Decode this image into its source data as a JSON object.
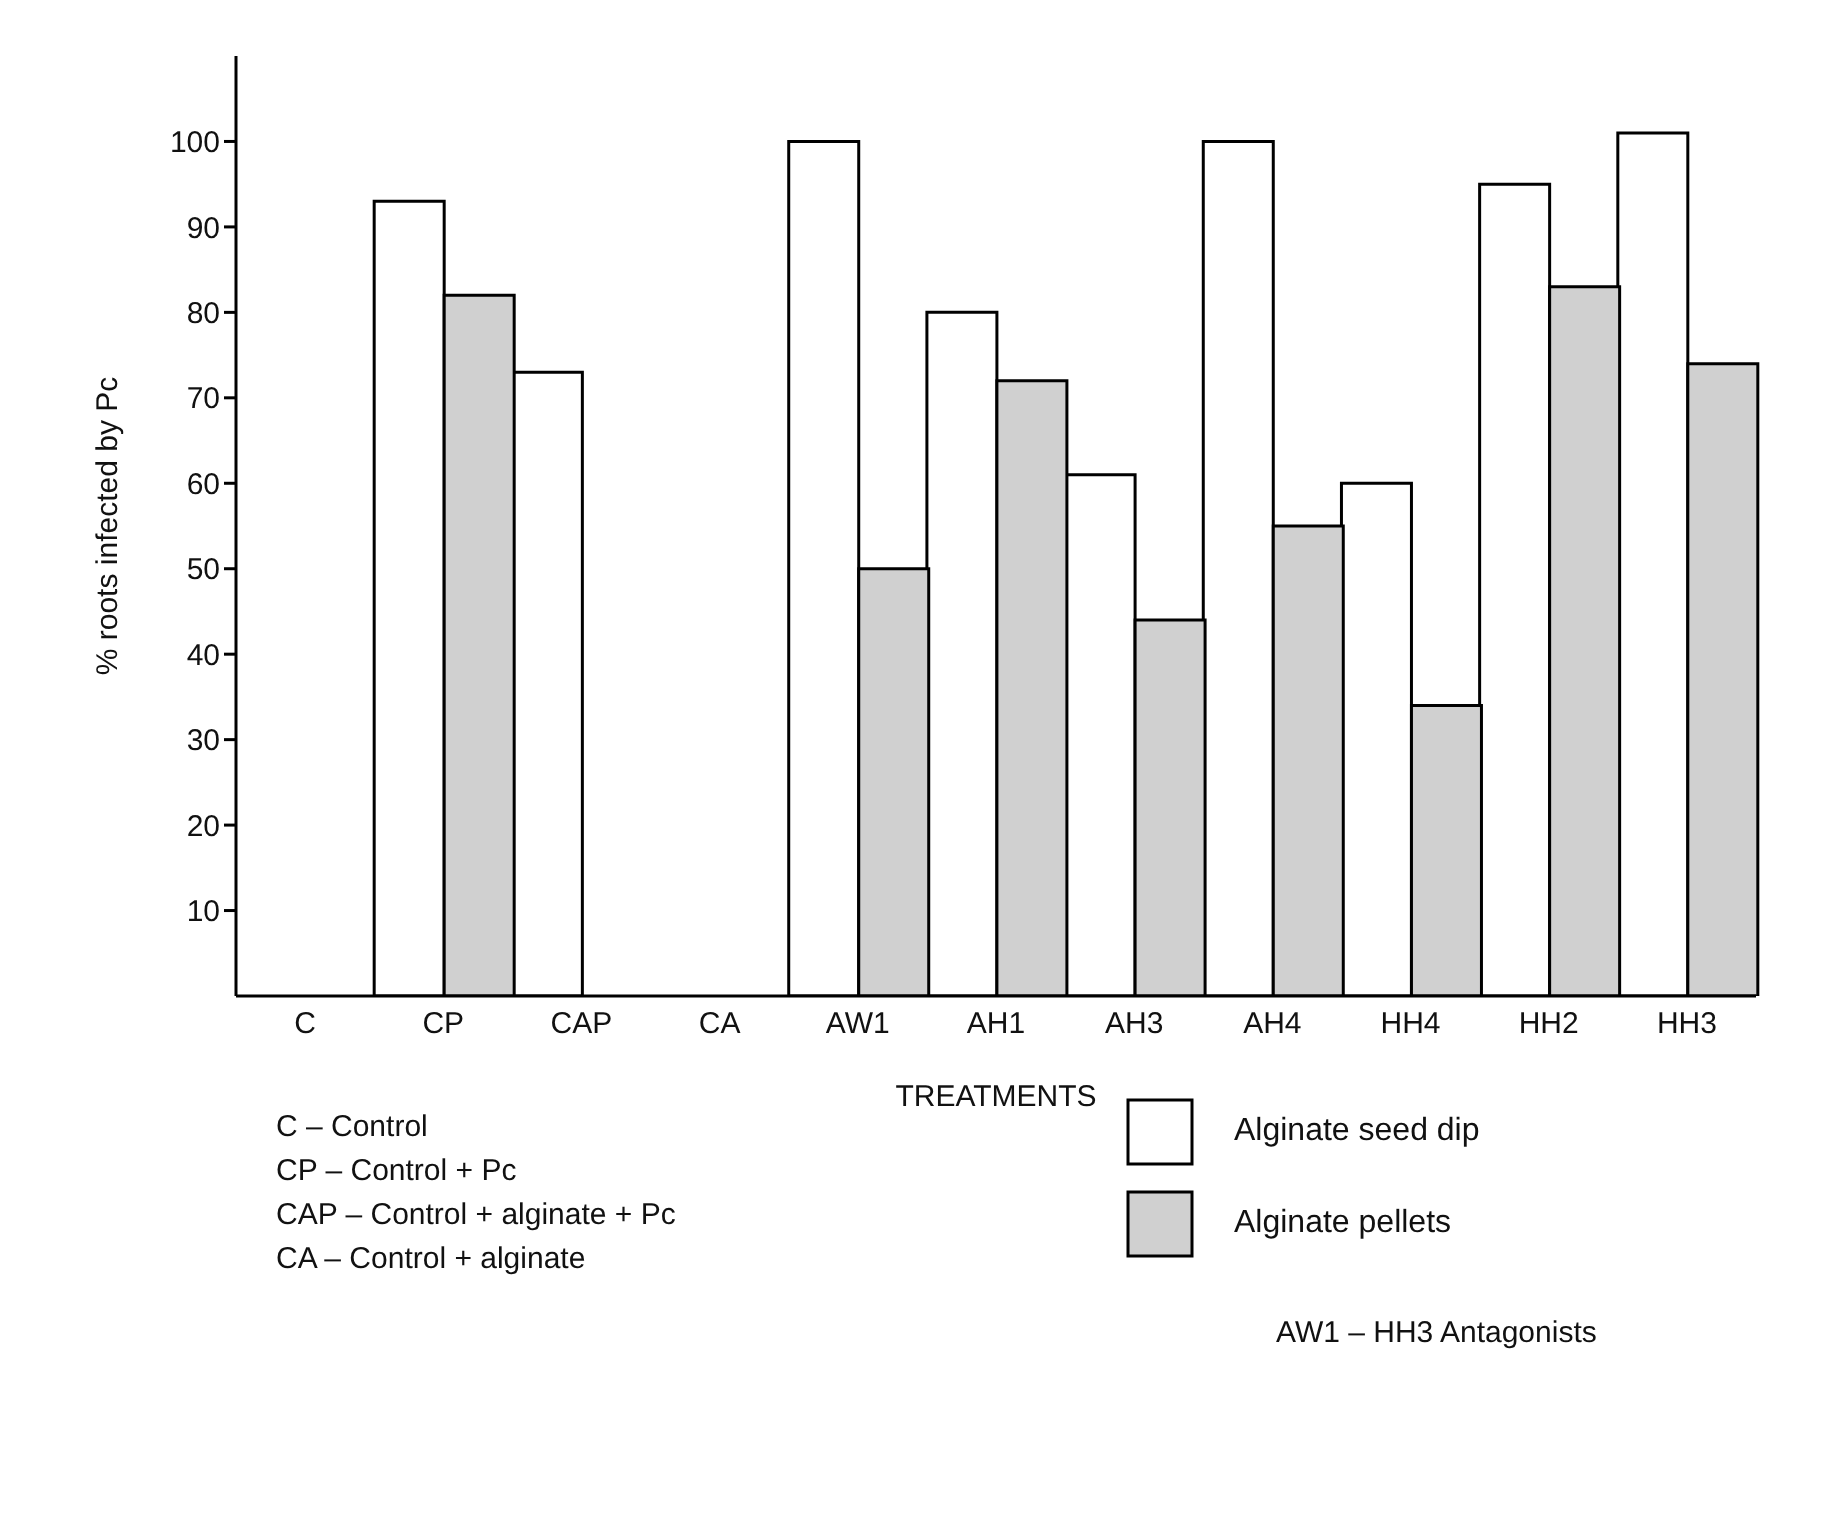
{
  "chart_data": {
    "type": "bar",
    "ylabel": "% roots infected by Pc",
    "xlabel": "TREATMENTS",
    "categories": [
      "C",
      "CP",
      "CAP",
      "CA",
      "AW1",
      "AH1",
      "AH3",
      "AH4",
      "HH4",
      "HH2",
      "HH3"
    ],
    "series": [
      {
        "name": "Alginate seed dip",
        "color": "#ffffff",
        "values": [
          0,
          93,
          73,
          0,
          100,
          80,
          61,
          100,
          60,
          95,
          101
        ]
      },
      {
        "name": "Alginate pellets",
        "color": "#d0d0d0",
        "values": [
          0,
          82,
          0,
          0,
          50,
          72,
          44,
          55,
          34,
          83,
          74
        ]
      }
    ],
    "ylim": [
      0,
      110
    ],
    "yticks": [
      10,
      20,
      30,
      40,
      50,
      60,
      70,
      80,
      90,
      100
    ],
    "grid": false,
    "legend": "bottom right",
    "annotations": [
      "C – Control",
      "CP – Control + Pc",
      "CAP – Control + alginate + Pc",
      "CA – Control + alginate",
      "AW1 – HH3 Antagonists"
    ]
  }
}
